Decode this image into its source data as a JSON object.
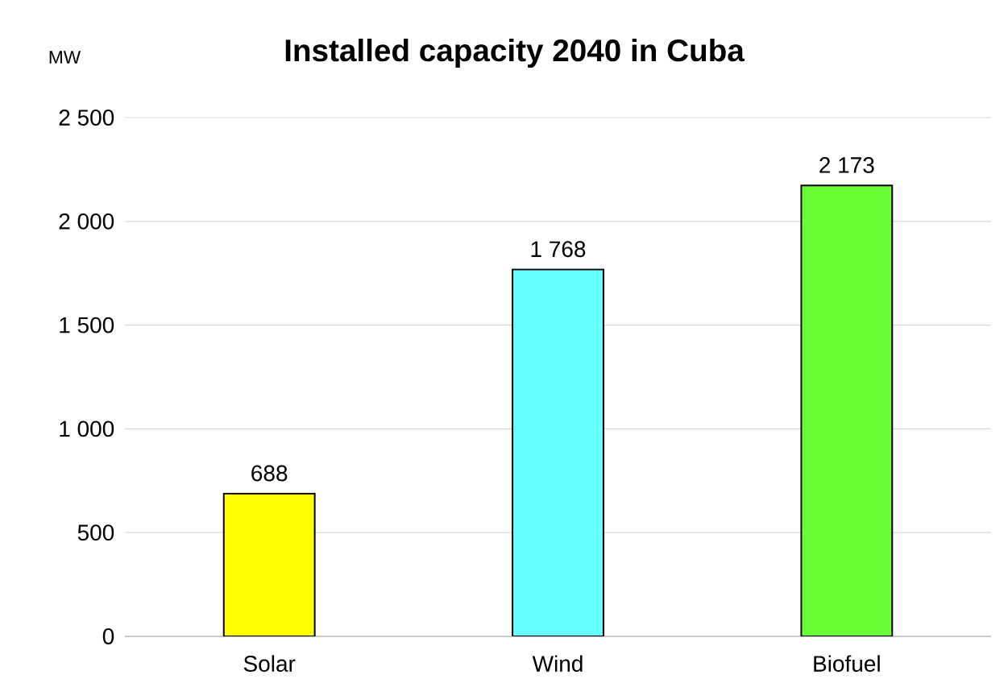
{
  "chart_data": {
    "type": "bar",
    "title": "Installed capacity 2040 in Cuba",
    "ylabel": "MW",
    "categories": [
      "Solar",
      "Wind",
      "Biofuel"
    ],
    "values": [
      688,
      1768,
      2173
    ],
    "colors": [
      "#ffff00",
      "#66ffff",
      "#66ff33"
    ],
    "value_labels": [
      "688",
      "1 768",
      "2 173"
    ],
    "ylim": [
      0,
      2500
    ],
    "yticks": [
      0,
      500,
      {
        "value": 1000,
        "label": "1 000"
      },
      {
        "value": 1500,
        "label": "1 500"
      },
      {
        "value": 2000,
        "label": "2 000"
      },
      {
        "value": 2500,
        "label": "2 500"
      }
    ],
    "grid": "y"
  }
}
